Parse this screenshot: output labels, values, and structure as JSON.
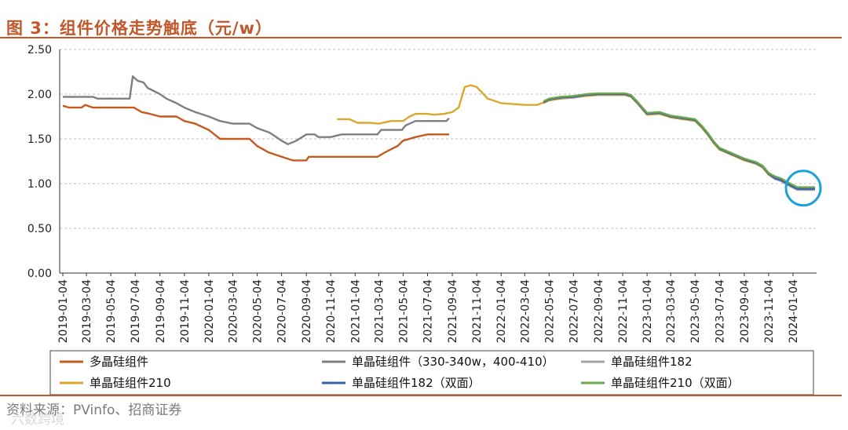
{
  "title": "图 3：组件价格走势触底（元/w）",
  "source": "资料来源：PVinfo、招商证券",
  "watermark": "六数跨境",
  "colors": {
    "accent": "#c0582b",
    "highlight": "#1aa3d9"
  },
  "chart_data": {
    "type": "line",
    "ylim": [
      0,
      2.5
    ],
    "yticks": [
      "2.50",
      "2.00",
      "1.50",
      "1.00",
      "0.50",
      "0.00"
    ],
    "ytick_values": [
      2.5,
      2.0,
      1.5,
      1.0,
      0.5,
      0.0
    ],
    "xticks": [
      "2019-01-04",
      "2019-03-04",
      "2019-05-04",
      "2019-07-04",
      "2019-09-04",
      "2019-11-04",
      "2020-01-04",
      "2020-03-04",
      "2020-05-04",
      "2020-07-04",
      "2020-09-04",
      "2020-11-04",
      "2021-01-04",
      "2021-03-04",
      "2021-05-04",
      "2021-07-04",
      "2021-09-04",
      "2021-11-04",
      "2022-01-04",
      "2022-03-04",
      "2022-05-04",
      "2022-07-04",
      "2022-09-04",
      "2022-11-04",
      "2023-01-04",
      "2023-03-04",
      "2023-05-04",
      "2023-07-04",
      "2023-09-04",
      "2023-11-04",
      "2024-01-04"
    ],
    "grid": true,
    "legend_position": "bottom",
    "series": [
      {
        "name": "多晶硅组件",
        "color": "#c55a1f",
        "points": [
          [
            "2019-01-04",
            1.87
          ],
          [
            "2019-01-20",
            1.85
          ],
          [
            "2019-02-20",
            1.85
          ],
          [
            "2019-03-01",
            1.88
          ],
          [
            "2019-03-20",
            1.85
          ],
          [
            "2019-05-01",
            1.85
          ],
          [
            "2019-06-10",
            1.85
          ],
          [
            "2019-07-01",
            1.85
          ],
          [
            "2019-07-20",
            1.8
          ],
          [
            "2019-08-10",
            1.78
          ],
          [
            "2019-09-04",
            1.75
          ],
          [
            "2019-10-15",
            1.75
          ],
          [
            "2019-11-04",
            1.7
          ],
          [
            "2019-12-01",
            1.67
          ],
          [
            "2020-01-04",
            1.6
          ],
          [
            "2020-02-01",
            1.5
          ],
          [
            "2020-03-04",
            1.5
          ],
          [
            "2020-04-15",
            1.5
          ],
          [
            "2020-05-04",
            1.42
          ],
          [
            "2020-06-01",
            1.35
          ],
          [
            "2020-07-04",
            1.3
          ],
          [
            "2020-08-01",
            1.26
          ],
          [
            "2020-09-04",
            1.26
          ],
          [
            "2020-09-10",
            1.3
          ],
          [
            "2020-11-04",
            1.3
          ],
          [
            "2021-01-04",
            1.3
          ],
          [
            "2021-03-01",
            1.3
          ],
          [
            "2021-03-20",
            1.35
          ],
          [
            "2021-04-20",
            1.42
          ],
          [
            "2021-05-04",
            1.48
          ],
          [
            "2021-06-04",
            1.52
          ],
          [
            "2021-07-04",
            1.55
          ],
          [
            "2021-08-27",
            1.55
          ]
        ]
      },
      {
        "name": "单晶硅组件（330-340w，400-410）",
        "color": "#7f7f7f",
        "points": [
          [
            "2019-01-04",
            1.97
          ],
          [
            "2019-03-20",
            1.97
          ],
          [
            "2019-04-01",
            1.95
          ],
          [
            "2019-06-20",
            1.95
          ],
          [
            "2019-06-28",
            2.2
          ],
          [
            "2019-07-10",
            2.15
          ],
          [
            "2019-07-25",
            2.13
          ],
          [
            "2019-08-04",
            2.07
          ],
          [
            "2019-09-04",
            2.0
          ],
          [
            "2019-09-20",
            1.95
          ],
          [
            "2019-10-15",
            1.9
          ],
          [
            "2019-11-04",
            1.85
          ],
          [
            "2019-12-01",
            1.8
          ],
          [
            "2020-01-04",
            1.75
          ],
          [
            "2020-02-01",
            1.7
          ],
          [
            "2020-03-04",
            1.67
          ],
          [
            "2020-04-15",
            1.67
          ],
          [
            "2020-05-04",
            1.62
          ],
          [
            "2020-06-04",
            1.57
          ],
          [
            "2020-07-04",
            1.48
          ],
          [
            "2020-07-20",
            1.44
          ],
          [
            "2020-08-10",
            1.48
          ],
          [
            "2020-09-04",
            1.55
          ],
          [
            "2020-09-25",
            1.55
          ],
          [
            "2020-10-04",
            1.52
          ],
          [
            "2020-11-04",
            1.52
          ],
          [
            "2020-12-01",
            1.55
          ],
          [
            "2021-01-04",
            1.55
          ],
          [
            "2021-03-01",
            1.55
          ],
          [
            "2021-03-10",
            1.6
          ],
          [
            "2021-05-01",
            1.6
          ],
          [
            "2021-05-10",
            1.65
          ],
          [
            "2021-06-04",
            1.7
          ],
          [
            "2021-08-20",
            1.7
          ],
          [
            "2021-08-27",
            1.73
          ]
        ]
      },
      {
        "name": "单晶硅组件182",
        "color": "#a6a6a6",
        "points": [
          [
            "2022-04-20",
            1.9
          ],
          [
            "2022-05-04",
            1.93
          ],
          [
            "2022-06-01",
            1.95
          ],
          [
            "2022-07-04",
            1.96
          ],
          [
            "2022-08-04",
            1.98
          ],
          [
            "2022-09-04",
            1.99
          ],
          [
            "2022-11-10",
            1.99
          ],
          [
            "2022-11-25",
            1.97
          ],
          [
            "2022-12-10",
            1.9
          ],
          [
            "2023-01-04",
            1.77
          ],
          [
            "2023-02-04",
            1.78
          ],
          [
            "2023-03-04",
            1.74
          ],
          [
            "2023-04-04",
            1.72
          ],
          [
            "2023-05-04",
            1.7
          ],
          [
            "2023-05-20",
            1.63
          ],
          [
            "2023-06-04",
            1.55
          ],
          [
            "2023-06-20",
            1.45
          ],
          [
            "2023-07-04",
            1.38
          ],
          [
            "2023-08-04",
            1.32
          ],
          [
            "2023-09-04",
            1.26
          ],
          [
            "2023-10-04",
            1.22
          ],
          [
            "2023-10-20",
            1.18
          ],
          [
            "2023-11-04",
            1.1
          ],
          [
            "2023-11-20",
            1.05
          ],
          [
            "2023-12-04",
            1.03
          ],
          [
            "2024-01-01",
            0.96
          ],
          [
            "2024-01-15",
            0.93
          ],
          [
            "2024-02-28",
            0.93
          ]
        ]
      },
      {
        "name": "单晶硅组件210",
        "color": "#d9a82c",
        "points": [
          [
            "2020-11-20",
            1.72
          ],
          [
            "2020-12-20",
            1.72
          ],
          [
            "2021-01-10",
            1.68
          ],
          [
            "2021-02-10",
            1.68
          ],
          [
            "2021-03-04",
            1.67
          ],
          [
            "2021-04-04",
            1.7
          ],
          [
            "2021-05-04",
            1.7
          ],
          [
            "2021-05-20",
            1.75
          ],
          [
            "2021-06-04",
            1.78
          ],
          [
            "2021-07-04",
            1.78
          ],
          [
            "2021-07-20",
            1.77
          ],
          [
            "2021-08-15",
            1.78
          ],
          [
            "2021-09-04",
            1.8
          ],
          [
            "2021-09-20",
            1.85
          ],
          [
            "2021-10-05",
            2.08
          ],
          [
            "2021-10-20",
            2.1
          ],
          [
            "2021-11-04",
            2.08
          ],
          [
            "2021-11-15",
            2.03
          ],
          [
            "2021-12-01",
            1.95
          ],
          [
            "2021-12-15",
            1.93
          ],
          [
            "2022-01-04",
            1.9
          ],
          [
            "2022-03-04",
            1.88
          ],
          [
            "2022-04-04",
            1.88
          ],
          [
            "2022-05-04",
            1.93
          ],
          [
            "2022-06-01",
            1.95
          ],
          [
            "2022-07-04",
            1.97
          ],
          [
            "2022-08-04",
            1.98
          ],
          [
            "2022-09-04",
            1.99
          ],
          [
            "2022-11-10",
            1.99
          ],
          [
            "2022-11-25",
            1.97
          ],
          [
            "2022-12-10",
            1.9
          ],
          [
            "2023-01-04",
            1.77
          ],
          [
            "2023-02-04",
            1.78
          ],
          [
            "2023-03-04",
            1.74
          ],
          [
            "2023-04-04",
            1.72
          ],
          [
            "2023-05-04",
            1.7
          ],
          [
            "2023-05-20",
            1.63
          ],
          [
            "2023-06-04",
            1.55
          ],
          [
            "2023-06-20",
            1.45
          ],
          [
            "2023-07-04",
            1.38
          ],
          [
            "2023-08-04",
            1.32
          ],
          [
            "2023-09-04",
            1.26
          ],
          [
            "2023-10-04",
            1.22
          ],
          [
            "2023-10-20",
            1.18
          ],
          [
            "2023-11-04",
            1.1
          ],
          [
            "2023-11-20",
            1.07
          ],
          [
            "2023-12-04",
            1.05
          ],
          [
            "2024-01-01",
            0.98
          ],
          [
            "2024-01-15",
            0.95
          ],
          [
            "2024-02-28",
            0.95
          ]
        ]
      },
      {
        "name": "单晶硅组件182（双面）",
        "color": "#3f5fa8",
        "points": [
          [
            "2022-04-20",
            1.91
          ],
          [
            "2022-05-04",
            1.94
          ],
          [
            "2022-06-01",
            1.96
          ],
          [
            "2022-07-04",
            1.97
          ],
          [
            "2022-08-04",
            1.99
          ],
          [
            "2022-09-04",
            2.0
          ],
          [
            "2022-11-10",
            2.0
          ],
          [
            "2022-11-25",
            1.98
          ],
          [
            "2022-12-10",
            1.91
          ],
          [
            "2023-01-04",
            1.78
          ],
          [
            "2023-02-04",
            1.79
          ],
          [
            "2023-03-04",
            1.75
          ],
          [
            "2023-04-04",
            1.73
          ],
          [
            "2023-05-04",
            1.71
          ],
          [
            "2023-05-20",
            1.64
          ],
          [
            "2023-06-04",
            1.56
          ],
          [
            "2023-06-20",
            1.46
          ],
          [
            "2023-07-04",
            1.39
          ],
          [
            "2023-08-04",
            1.33
          ],
          [
            "2023-09-04",
            1.27
          ],
          [
            "2023-10-04",
            1.23
          ],
          [
            "2023-10-20",
            1.19
          ],
          [
            "2023-11-04",
            1.11
          ],
          [
            "2023-11-20",
            1.06
          ],
          [
            "2023-12-04",
            1.04
          ],
          [
            "2024-01-01",
            0.97
          ],
          [
            "2024-01-15",
            0.94
          ],
          [
            "2024-02-28",
            0.94
          ]
        ]
      },
      {
        "name": "单晶硅组件210（双面）",
        "color": "#6aa84f",
        "points": [
          [
            "2022-04-20",
            1.92
          ],
          [
            "2022-05-04",
            1.95
          ],
          [
            "2022-06-01",
            1.97
          ],
          [
            "2022-07-04",
            1.98
          ],
          [
            "2022-08-04",
            2.0
          ],
          [
            "2022-09-04",
            2.01
          ],
          [
            "2022-11-10",
            2.01
          ],
          [
            "2022-11-25",
            1.99
          ],
          [
            "2022-12-10",
            1.92
          ],
          [
            "2023-01-04",
            1.79
          ],
          [
            "2023-02-04",
            1.8
          ],
          [
            "2023-03-04",
            1.76
          ],
          [
            "2023-04-04",
            1.74
          ],
          [
            "2023-05-04",
            1.72
          ],
          [
            "2023-05-20",
            1.65
          ],
          [
            "2023-06-04",
            1.57
          ],
          [
            "2023-06-20",
            1.47
          ],
          [
            "2023-07-04",
            1.4
          ],
          [
            "2023-08-04",
            1.34
          ],
          [
            "2023-09-04",
            1.28
          ],
          [
            "2023-10-04",
            1.24
          ],
          [
            "2023-10-20",
            1.2
          ],
          [
            "2023-11-04",
            1.12
          ],
          [
            "2023-11-20",
            1.08
          ],
          [
            "2023-12-04",
            1.06
          ],
          [
            "2024-01-01",
            0.99
          ],
          [
            "2024-01-15",
            0.96
          ],
          [
            "2024-02-28",
            0.96
          ]
        ]
      }
    ]
  }
}
